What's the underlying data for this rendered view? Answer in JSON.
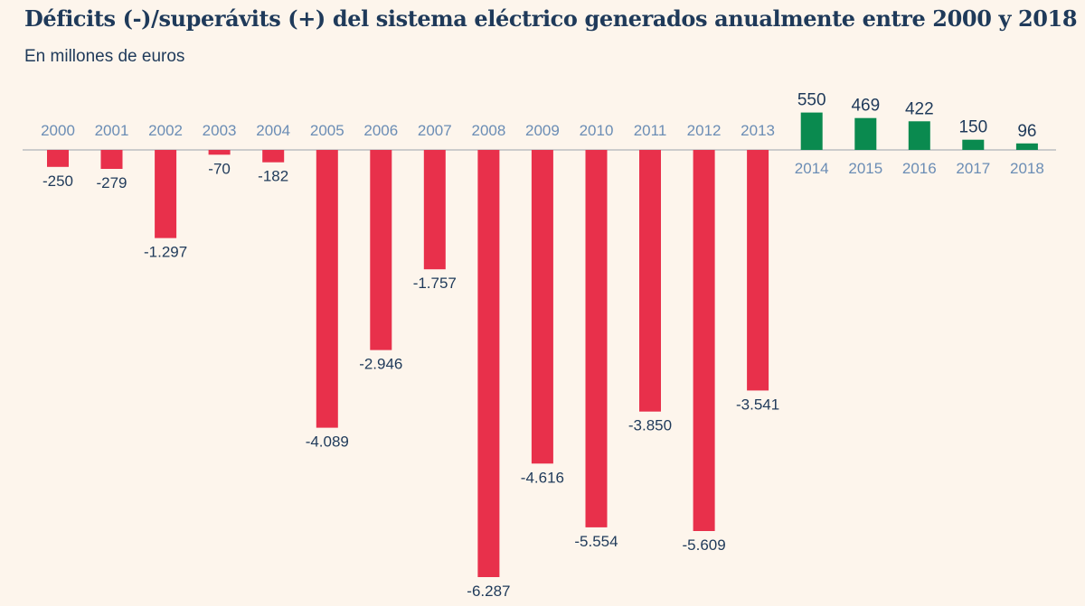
{
  "chart_data": {
    "type": "bar",
    "title": "Déficits (-)/superávits (+) del sistema eléctrico generados anualmente entre 2000 y 2018",
    "subtitle": "En millones de euros",
    "categories": [
      "2000",
      "2001",
      "2002",
      "2003",
      "2004",
      "2005",
      "2006",
      "2007",
      "2008",
      "2009",
      "2010",
      "2011",
      "2012",
      "2013",
      "2014",
      "2015",
      "2016",
      "2017",
      "2018"
    ],
    "values": [
      -250,
      -279,
      -1297,
      -70,
      -182,
      -4089,
      -2946,
      -1757,
      -6287,
      -4616,
      -5554,
      -3850,
      -5609,
      -3541,
      550,
      469,
      422,
      150,
      96
    ],
    "value_labels": [
      "-250",
      "-279",
      "-1.297",
      "-70",
      "-182",
      "-4.089",
      "-2.946",
      "-1.757",
      "-6.287",
      "-4.616",
      "-5.554",
      "-3.850",
      "-5.609",
      "-3.541",
      "550",
      "469",
      "422",
      "150",
      "96"
    ],
    "ylim": [
      -6287,
      550
    ],
    "grid": false,
    "legend": "none",
    "colors": {
      "negative": "#e8304b",
      "positive": "#0a8a4f",
      "title": "#1f3a5a",
      "year_label": "#6b8db5",
      "axis": "#9aa3ad",
      "background": "#fdf5ec"
    }
  }
}
